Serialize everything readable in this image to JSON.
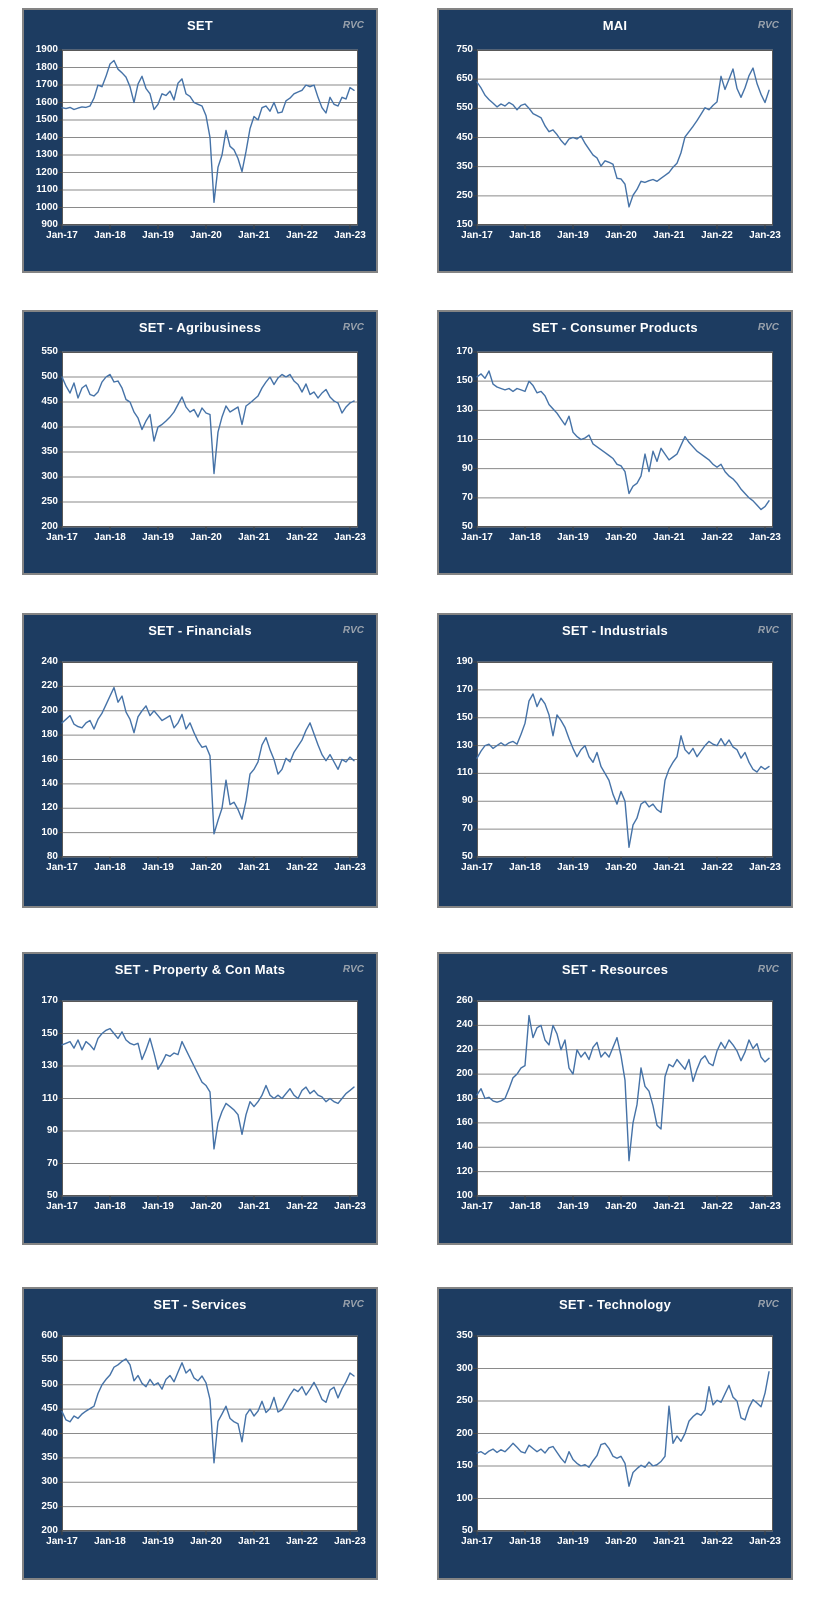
{
  "watermark": "RVC",
  "theme": {
    "page_bg": "#ffffff",
    "panel_bg": "#1d3c61",
    "panel_border": "#848484",
    "plot_bg": "#ffffff",
    "plot_border": "#595959",
    "grid_color": "#8a8a8a",
    "tick_color": "#444444",
    "line_color": "#4572a7",
    "text_color": "#ffffff",
    "watermark_color": "#9aa2ac"
  },
  "x_ticks": [
    "Jan-17",
    "Jan-18",
    "Jan-19",
    "Jan-20",
    "Jan-21",
    "Jan-22",
    "Jan-23"
  ],
  "chart_data": [
    {
      "title": "SET",
      "watermark": "RVC",
      "type": "line",
      "xlabel": "",
      "ylabel": "",
      "grid": true,
      "legend": "none",
      "ylim": [
        900,
        1900
      ],
      "y_ticks": [
        1900,
        1800,
        1700,
        1600,
        1500,
        1400,
        1300,
        1200,
        1100,
        1000,
        900
      ],
      "x_ticks": [
        "Jan-17",
        "Jan-18",
        "Jan-19",
        "Jan-20",
        "Jan-21",
        "Jan-22",
        "Jan-23"
      ],
      "x_unit": "month",
      "x_range_months": 74,
      "values": [
        1570,
        1565,
        1572,
        1560,
        1568,
        1575,
        1572,
        1580,
        1625,
        1700,
        1690,
        1750,
        1820,
        1840,
        1790,
        1770,
        1745,
        1690,
        1600,
        1705,
        1750,
        1680,
        1650,
        1560,
        1590,
        1650,
        1640,
        1665,
        1615,
        1710,
        1735,
        1650,
        1635,
        1600,
        1590,
        1580,
        1525,
        1400,
        1030,
        1230,
        1300,
        1440,
        1350,
        1330,
        1280,
        1205,
        1320,
        1450,
        1520,
        1500,
        1570,
        1580,
        1550,
        1600,
        1540,
        1545,
        1610,
        1625,
        1650,
        1660,
        1670,
        1700,
        1690,
        1700,
        1630,
        1570,
        1540,
        1630,
        1590,
        1580,
        1630,
        1620,
        1685,
        1670
      ]
    },
    {
      "title": "MAI",
      "watermark": "RVC",
      "type": "line",
      "xlabel": "",
      "ylabel": "",
      "grid": true,
      "legend": "none",
      "ylim": [
        150,
        750
      ],
      "y_ticks": [
        750,
        650,
        550,
        450,
        350,
        250,
        150
      ],
      "x_ticks": [
        "Jan-17",
        "Jan-18",
        "Jan-19",
        "Jan-20",
        "Jan-21",
        "Jan-22",
        "Jan-23"
      ],
      "x_unit": "month",
      "x_range_months": 74,
      "values": [
        640,
        620,
        595,
        580,
        568,
        555,
        565,
        558,
        570,
        562,
        545,
        560,
        565,
        550,
        532,
        525,
        518,
        490,
        470,
        476,
        460,
        440,
        425,
        445,
        450,
        445,
        455,
        430,
        410,
        390,
        380,
        352,
        370,
        365,
        358,
        310,
        308,
        290,
        212,
        252,
        272,
        300,
        296,
        302,
        306,
        300,
        310,
        320,
        330,
        348,
        362,
        398,
        452,
        470,
        488,
        508,
        530,
        552,
        545,
        560,
        572,
        660,
        615,
        650,
        685,
        618,
        588,
        620,
        662,
        688,
        635,
        598,
        570,
        612
      ]
    },
    {
      "title": "SET - Agribusiness",
      "watermark": "RVC",
      "type": "line",
      "xlabel": "",
      "ylabel": "",
      "grid": true,
      "legend": "none",
      "ylim": [
        200,
        550
      ],
      "y_ticks": [
        550,
        500,
        450,
        400,
        350,
        300,
        250,
        200
      ],
      "x_ticks": [
        "Jan-17",
        "Jan-18",
        "Jan-19",
        "Jan-20",
        "Jan-21",
        "Jan-22",
        "Jan-23"
      ],
      "x_unit": "month",
      "x_range_months": 74,
      "values": [
        500,
        482,
        468,
        488,
        458,
        478,
        484,
        465,
        462,
        470,
        490,
        500,
        505,
        490,
        492,
        478,
        455,
        450,
        430,
        418,
        395,
        412,
        425,
        372,
        400,
        405,
        412,
        420,
        430,
        445,
        460,
        440,
        430,
        435,
        420,
        438,
        428,
        425,
        307,
        390,
        420,
        442,
        430,
        435,
        440,
        405,
        442,
        448,
        455,
        462,
        478,
        490,
        500,
        485,
        498,
        505,
        500,
        505,
        492,
        485,
        470,
        486,
        465,
        470,
        458,
        468,
        475,
        460,
        452,
        448,
        428,
        440,
        448,
        452
      ]
    },
    {
      "title": "SET - Consumer Products",
      "watermark": "RVC",
      "type": "line",
      "xlabel": "",
      "ylabel": "",
      "grid": true,
      "legend": "none",
      "ylim": [
        50,
        170
      ],
      "y_ticks": [
        170,
        150,
        130,
        110,
        90,
        70,
        50
      ],
      "x_ticks": [
        "Jan-17",
        "Jan-18",
        "Jan-19",
        "Jan-20",
        "Jan-21",
        "Jan-22",
        "Jan-23"
      ],
      "x_unit": "month",
      "x_range_months": 74,
      "values": [
        153,
        155,
        152,
        157,
        148,
        146,
        145,
        144,
        145,
        143,
        145,
        144,
        143,
        150,
        147,
        142,
        143,
        140,
        134,
        131,
        128,
        124,
        120,
        126,
        115,
        112,
        110,
        111,
        113,
        107,
        105,
        103,
        101,
        99,
        97,
        93,
        92,
        88,
        73,
        78,
        80,
        85,
        100,
        88,
        102,
        95,
        104,
        100,
        96,
        98,
        100,
        106,
        112,
        108,
        105,
        102,
        100,
        98,
        96,
        93,
        91,
        93,
        88,
        85,
        83,
        80,
        76,
        73,
        70,
        68,
        65,
        62,
        64,
        68
      ]
    },
    {
      "title": "SET - Financials",
      "watermark": "RVC",
      "type": "line",
      "xlabel": "",
      "ylabel": "",
      "grid": true,
      "legend": "none",
      "ylim": [
        80,
        240
      ],
      "y_ticks": [
        240,
        220,
        200,
        180,
        160,
        140,
        120,
        100,
        80
      ],
      "x_ticks": [
        "Jan-17",
        "Jan-18",
        "Jan-19",
        "Jan-20",
        "Jan-21",
        "Jan-22",
        "Jan-23"
      ],
      "x_unit": "month",
      "x_range_months": 74,
      "values": [
        190,
        193,
        196,
        189,
        187,
        186,
        190,
        192,
        185,
        193,
        198,
        205,
        212,
        219,
        207,
        212,
        199,
        193,
        182,
        195,
        200,
        204,
        196,
        200,
        196,
        192,
        194,
        196,
        186,
        190,
        197,
        185,
        190,
        182,
        175,
        170,
        171,
        163,
        99,
        110,
        120,
        143,
        123,
        125,
        119,
        111,
        126,
        148,
        152,
        158,
        172,
        178,
        168,
        160,
        148,
        152,
        161,
        158,
        166,
        171,
        176,
        184,
        190,
        181,
        172,
        164,
        159,
        164,
        158,
        152,
        160,
        158,
        162,
        159
      ]
    },
    {
      "title": "SET - Industrials",
      "watermark": "RVC",
      "type": "line",
      "xlabel": "",
      "ylabel": "",
      "grid": true,
      "legend": "none",
      "ylim": [
        50,
        190
      ],
      "y_ticks": [
        190,
        170,
        150,
        130,
        110,
        90,
        70,
        50
      ],
      "x_ticks": [
        "Jan-17",
        "Jan-18",
        "Jan-19",
        "Jan-20",
        "Jan-21",
        "Jan-22",
        "Jan-23"
      ],
      "x_unit": "month",
      "x_range_months": 74,
      "values": [
        121,
        126,
        130,
        131,
        128,
        130,
        132,
        130,
        132,
        133,
        131,
        138,
        146,
        162,
        167,
        158,
        164,
        160,
        152,
        137,
        152,
        148,
        143,
        135,
        128,
        122,
        127,
        130,
        122,
        118,
        125,
        115,
        110,
        105,
        95,
        88,
        97,
        90,
        57,
        73,
        78,
        88,
        90,
        86,
        88,
        84,
        82,
        105,
        113,
        118,
        122,
        137,
        127,
        124,
        128,
        122,
        126,
        130,
        133,
        131,
        130,
        135,
        130,
        134,
        129,
        127,
        121,
        125,
        118,
        113,
        111,
        115,
        113,
        115
      ]
    },
    {
      "title": "SET - Property & Con Mats",
      "watermark": "RVC",
      "type": "line",
      "xlabel": "",
      "ylabel": "",
      "grid": true,
      "legend": "none",
      "ylim": [
        50,
        170
      ],
      "y_ticks": [
        170,
        150,
        130,
        110,
        90,
        70,
        50
      ],
      "x_ticks": [
        "Jan-17",
        "Jan-18",
        "Jan-19",
        "Jan-20",
        "Jan-21",
        "Jan-22",
        "Jan-23"
      ],
      "x_unit": "month",
      "x_range_months": 74,
      "values": [
        143,
        144,
        145,
        141,
        146,
        140,
        145,
        143,
        140,
        147,
        150,
        152,
        153,
        150,
        147,
        151,
        146,
        144,
        143,
        144,
        134,
        140,
        147,
        138,
        128,
        132,
        137,
        136,
        138,
        137,
        145,
        140,
        135,
        130,
        125,
        120,
        118,
        114,
        79,
        95,
        102,
        107,
        105,
        103,
        100,
        88,
        100,
        108,
        105,
        108,
        112,
        118,
        112,
        110,
        112,
        110,
        113,
        116,
        112,
        110,
        115,
        117,
        113,
        115,
        112,
        111,
        108,
        110,
        108,
        107,
        110,
        113,
        115,
        117
      ]
    },
    {
      "title": "SET - Resources",
      "watermark": "RVC",
      "type": "line",
      "xlabel": "",
      "ylabel": "",
      "grid": true,
      "legend": "none",
      "ylim": [
        100,
        260
      ],
      "y_ticks": [
        260,
        240,
        220,
        200,
        180,
        160,
        140,
        120,
        100
      ],
      "x_ticks": [
        "Jan-17",
        "Jan-18",
        "Jan-19",
        "Jan-20",
        "Jan-21",
        "Jan-22",
        "Jan-23"
      ],
      "x_unit": "month",
      "x_range_months": 74,
      "values": [
        183,
        188,
        180,
        181,
        178,
        177,
        178,
        180,
        188,
        197,
        200,
        205,
        207,
        248,
        230,
        238,
        240,
        228,
        224,
        240,
        233,
        220,
        228,
        205,
        200,
        220,
        214,
        218,
        212,
        222,
        226,
        214,
        218,
        214,
        222,
        230,
        215,
        195,
        129,
        160,
        175,
        205,
        190,
        186,
        174,
        158,
        155,
        198,
        208,
        206,
        212,
        208,
        204,
        212,
        194,
        204,
        212,
        215,
        209,
        207,
        219,
        226,
        221,
        228,
        224,
        219,
        211,
        218,
        228,
        221,
        225,
        214,
        210,
        213
      ]
    },
    {
      "title": "SET - Services",
      "watermark": "RVC",
      "type": "line",
      "xlabel": "",
      "ylabel": "",
      "grid": true,
      "legend": "none",
      "ylim": [
        200,
        600
      ],
      "y_ticks": [
        600,
        550,
        500,
        450,
        400,
        350,
        300,
        250,
        200
      ],
      "x_ticks": [
        "Jan-17",
        "Jan-18",
        "Jan-19",
        "Jan-20",
        "Jan-21",
        "Jan-22",
        "Jan-23"
      ],
      "x_unit": "month",
      "x_range_months": 74,
      "values": [
        445,
        428,
        424,
        436,
        431,
        440,
        446,
        451,
        456,
        482,
        500,
        511,
        520,
        536,
        541,
        548,
        553,
        541,
        508,
        519,
        503,
        496,
        511,
        499,
        504,
        491,
        511,
        519,
        506,
        526,
        545,
        524,
        532,
        514,
        508,
        518,
        504,
        470,
        340,
        425,
        440,
        456,
        431,
        424,
        420,
        383,
        438,
        450,
        436,
        446,
        466,
        443,
        451,
        474,
        444,
        449,
        464,
        479,
        491,
        486,
        496,
        479,
        491,
        505,
        489,
        470,
        464,
        489,
        495,
        473,
        492,
        506,
        524,
        518
      ]
    },
    {
      "title": "SET - Technology",
      "watermark": "RVC",
      "type": "line",
      "xlabel": "",
      "ylabel": "",
      "grid": true,
      "legend": "none",
      "ylim": [
        50,
        350
      ],
      "y_ticks": [
        350,
        300,
        250,
        200,
        150,
        100,
        50
      ],
      "x_ticks": [
        "Jan-17",
        "Jan-18",
        "Jan-19",
        "Jan-20",
        "Jan-21",
        "Jan-22",
        "Jan-23"
      ],
      "x_unit": "month",
      "x_range_months": 74,
      "values": [
        170,
        172,
        168,
        173,
        176,
        171,
        175,
        172,
        178,
        185,
        179,
        172,
        170,
        182,
        177,
        172,
        176,
        170,
        178,
        180,
        171,
        162,
        155,
        172,
        160,
        154,
        150,
        152,
        148,
        158,
        166,
        183,
        185,
        177,
        165,
        162,
        165,
        154,
        119,
        140,
        146,
        151,
        148,
        156,
        150,
        152,
        157,
        165,
        242,
        185,
        196,
        188,
        200,
        219,
        226,
        231,
        228,
        236,
        272,
        244,
        251,
        248,
        261,
        274,
        256,
        250,
        224,
        221,
        240,
        252,
        247,
        241,
        262,
        295
      ]
    }
  ]
}
